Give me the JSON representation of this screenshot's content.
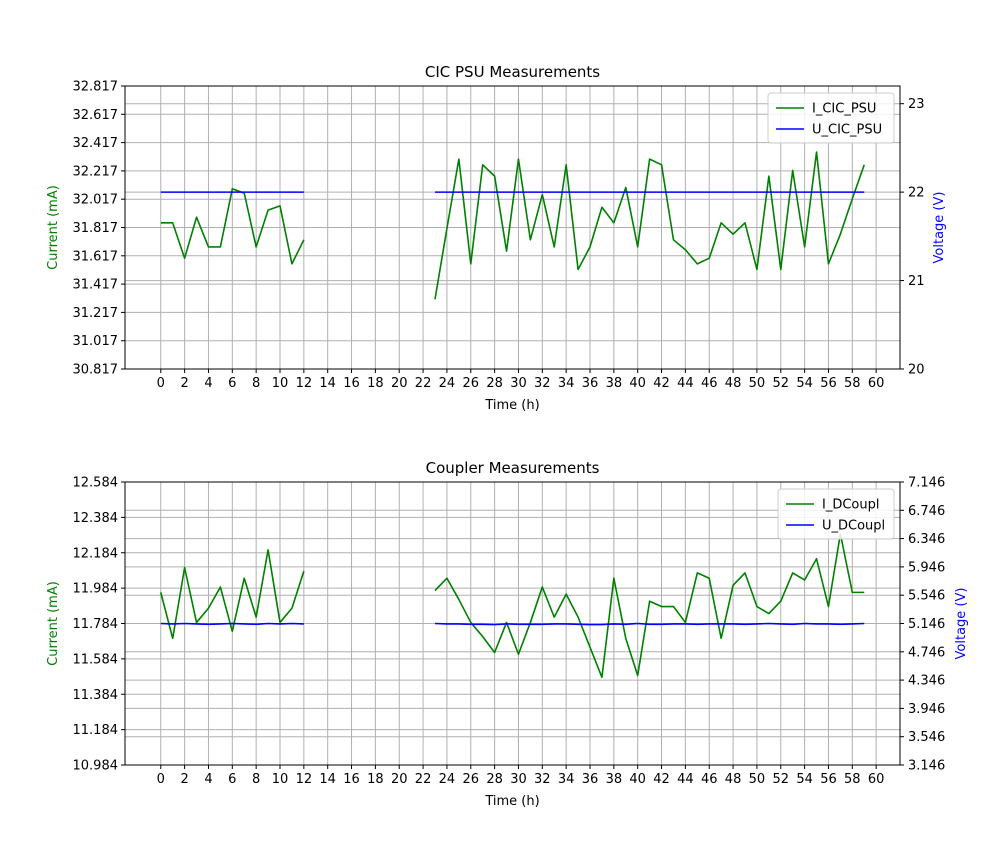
{
  "chart_data": [
    {
      "type": "line",
      "title": "CIC PSU Measurements",
      "xlabel": "Time (h)",
      "ylabel": "Current (mA)",
      "y2label": "Voltage (V)",
      "xlim": [
        -3,
        62
      ],
      "ylim": [
        30.817,
        32.817
      ],
      "y2lim": [
        20,
        23.2
      ],
      "xticks": [
        "0",
        "2",
        "4",
        "6",
        "8",
        "10",
        "12",
        "14",
        "16",
        "18",
        "20",
        "22",
        "24",
        "26",
        "28",
        "30",
        "32",
        "34",
        "36",
        "38",
        "40",
        "42",
        "44",
        "46",
        "48",
        "50",
        "52",
        "54",
        "56",
        "58",
        "60"
      ],
      "yticks": [
        "30.817",
        "31.017",
        "31.217",
        "31.417",
        "31.617",
        "31.817",
        "32.017",
        "32.217",
        "32.417",
        "32.617",
        "32.817"
      ],
      "y2ticks": [
        "20",
        "21",
        "22",
        "23"
      ],
      "grid": true,
      "legend": "top-right",
      "series": [
        {
          "name": "I_CIC_PSU",
          "axis": "left",
          "color": "#008000",
          "segments": [
            {
              "x": [
                0,
                1,
                2,
                3,
                4,
                5,
                6,
                7,
                8,
                9,
                10,
                11,
                12
              ],
              "y": [
                31.85,
                31.85,
                31.6,
                31.89,
                31.68,
                31.68,
                32.09,
                32.06,
                31.68,
                31.94,
                31.97,
                31.56,
                31.73
              ]
            },
            {
              "x": [
                23,
                24,
                25,
                26,
                27,
                28,
                29,
                30,
                31,
                32,
                33,
                34,
                35,
                36,
                37,
                38,
                39,
                40,
                41,
                42,
                43,
                44,
                45,
                46,
                47,
                48,
                49,
                50,
                51,
                52,
                53,
                54,
                55,
                56,
                57,
                58,
                59
              ],
              "y": [
                31.31,
                31.81,
                32.3,
                31.56,
                32.26,
                32.18,
                31.65,
                32.3,
                31.73,
                32.05,
                31.68,
                32.26,
                31.52,
                31.68,
                31.96,
                31.85,
                32.1,
                31.68,
                32.3,
                32.26,
                31.73,
                31.66,
                31.56,
                31.6,
                31.85,
                31.77,
                31.85,
                31.52,
                32.18,
                31.52,
                32.22,
                31.68,
                32.35,
                31.56,
                31.77,
                32.02,
                32.26
              ]
            }
          ]
        },
        {
          "name": "U_CIC_PSU",
          "axis": "right",
          "color": "#0000ff",
          "segments": [
            {
              "x": [
                0,
                1,
                2,
                3,
                4,
                5,
                6,
                7,
                8,
                9,
                10,
                11,
                12
              ],
              "y": [
                22,
                22,
                22,
                22,
                22,
                22,
                22,
                22,
                22,
                22,
                22,
                22,
                22
              ]
            },
            {
              "x": [
                23,
                24,
                25,
                26,
                27,
                28,
                29,
                30,
                31,
                32,
                33,
                34,
                35,
                36,
                37,
                38,
                39,
                40,
                41,
                42,
                43,
                44,
                45,
                46,
                47,
                48,
                49,
                50,
                51,
                52,
                53,
                54,
                55,
                56,
                57,
                58,
                59
              ],
              "y": [
                22,
                22,
                22,
                22,
                22,
                22,
                22,
                22,
                22,
                22,
                22,
                22,
                22,
                22,
                22,
                22,
                22,
                22,
                22,
                22,
                22,
                22,
                22,
                22,
                22,
                22,
                22,
                22,
                22,
                22,
                22,
                22,
                22,
                22,
                22,
                22,
                22
              ]
            }
          ]
        }
      ]
    },
    {
      "type": "line",
      "title": "Coupler Measurements",
      "xlabel": "Time (h)",
      "ylabel": "Current (mA)",
      "y2label": "Voltage (V)",
      "xlim": [
        -3,
        62
      ],
      "ylim": [
        10.984,
        12.584
      ],
      "y2lim": [
        3.146,
        7.146
      ],
      "xticks": [
        "0",
        "2",
        "4",
        "6",
        "8",
        "10",
        "12",
        "14",
        "16",
        "18",
        "20",
        "22",
        "24",
        "26",
        "28",
        "30",
        "32",
        "34",
        "36",
        "38",
        "40",
        "42",
        "44",
        "46",
        "48",
        "50",
        "52",
        "54",
        "56",
        "58",
        "60"
      ],
      "yticks": [
        "10.984",
        "11.184",
        "11.384",
        "11.584",
        "11.784",
        "11.984",
        "12.184",
        "12.384",
        "12.584"
      ],
      "y2ticks": [
        "3.146",
        "3.546",
        "3.946",
        "4.346",
        "4.746",
        "5.146",
        "5.546",
        "5.946",
        "6.346",
        "6.746",
        "7.146"
      ],
      "grid": true,
      "legend": "top-right",
      "series": [
        {
          "name": "I_DCoupl",
          "axis": "left",
          "color": "#008000",
          "segments": [
            {
              "x": [
                0,
                1,
                2,
                3,
                4,
                5,
                6,
                7,
                8,
                9,
                10,
                11,
                12
              ],
              "y": [
                11.96,
                11.7,
                12.1,
                11.79,
                11.87,
                11.99,
                11.74,
                12.04,
                11.82,
                12.2,
                11.79,
                11.87,
                12.08
              ]
            },
            {
              "x": [
                23,
                24,
                25,
                26,
                27,
                28,
                29,
                30,
                31,
                32,
                33,
                34,
                35,
                36,
                37,
                38,
                39,
                40,
                41,
                42,
                43,
                44,
                45,
                46,
                47,
                48,
                49,
                50,
                51,
                52,
                53,
                54,
                55,
                56,
                57,
                58,
                59
              ],
              "y": [
                11.97,
                12.04,
                11.92,
                11.79,
                11.71,
                11.62,
                11.79,
                11.61,
                11.79,
                11.99,
                11.82,
                11.95,
                11.82,
                11.65,
                11.48,
                12.04,
                11.7,
                11.49,
                11.91,
                11.88,
                11.88,
                11.79,
                12.07,
                12.04,
                11.7,
                12.0,
                12.07,
                11.88,
                11.84,
                11.91,
                12.07,
                12.03,
                12.15,
                11.88,
                12.29,
                11.96,
                11.96
              ]
            }
          ]
        },
        {
          "name": "U_DCoupl",
          "axis": "right",
          "color": "#0000ff",
          "segments": [
            {
              "x": [
                0,
                1,
                2,
                3,
                4,
                5,
                6,
                7,
                8,
                9,
                10,
                11,
                12
              ],
              "y": [
                5.146,
                5.14,
                5.146,
                5.14,
                5.135,
                5.14,
                5.146,
                5.14,
                5.135,
                5.146,
                5.14,
                5.146,
                5.14
              ]
            },
            {
              "x": [
                23,
                24,
                25,
                26,
                27,
                28,
                29,
                30,
                31,
                32,
                33,
                34,
                35,
                36,
                37,
                38,
                39,
                40,
                41,
                42,
                43,
                44,
                45,
                46,
                47,
                48,
                49,
                50,
                51,
                52,
                53,
                54,
                55,
                56,
                57,
                58,
                59
              ],
              "y": [
                5.146,
                5.14,
                5.14,
                5.135,
                5.135,
                5.13,
                5.14,
                5.135,
                5.135,
                5.135,
                5.14,
                5.14,
                5.135,
                5.13,
                5.13,
                5.14,
                5.135,
                5.146,
                5.135,
                5.135,
                5.14,
                5.14,
                5.135,
                5.14,
                5.14,
                5.14,
                5.135,
                5.14,
                5.146,
                5.14,
                5.135,
                5.146,
                5.14,
                5.14,
                5.135,
                5.14,
                5.146
              ]
            }
          ]
        }
      ]
    }
  ]
}
